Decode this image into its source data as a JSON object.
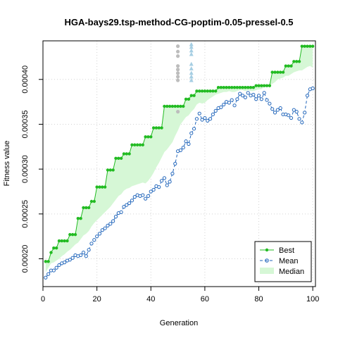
{
  "chart_data": {
    "type": "line",
    "title": "HGA-bays29.tsp-method-CG-poptim-0.05-pressel-0.5",
    "xlabel": "Generation",
    "ylabel": "Fitness value",
    "xlim": [
      0,
      101
    ],
    "ylim": [
      0.000169,
      0.000443
    ],
    "xticks": [
      0,
      20,
      40,
      60,
      80,
      100
    ],
    "yticks": [
      "0.00020",
      "0.00025",
      "0.00030",
      "0.00035",
      "0.00040"
    ],
    "ytick_values": [
      0.0002,
      0.00025,
      0.0003,
      0.00035,
      0.0004
    ],
    "grid": true,
    "legend_position": "bottom-right",
    "legend": [
      "Best",
      "Mean",
      "Median"
    ],
    "colors": {
      "best": "#22bb22",
      "mean": "#2266bb",
      "median_fill": "#d6f7d6",
      "jitter_grey": "#bdbdbd",
      "jitter_blue": "#a6cee3"
    },
    "series": [
      {
        "name": "Best",
        "x_from": 1,
        "values": [
          0.000197,
          0.000197,
          0.000207,
          0.000212,
          0.000212,
          0.00022,
          0.00022,
          0.00022,
          0.00022,
          0.000227,
          0.000227,
          0.000227,
          0.000245,
          0.000245,
          0.000257,
          0.000257,
          0.000257,
          0.000264,
          0.000264,
          0.00028,
          0.00028,
          0.00028,
          0.00028,
          0.000299,
          0.000299,
          0.000299,
          0.000312,
          0.000312,
          0.000312,
          0.000317,
          0.000317,
          0.000317,
          0.000327,
          0.000327,
          0.000327,
          0.000327,
          0.000327,
          0.000336,
          0.000336,
          0.000336,
          0.000346,
          0.000346,
          0.000346,
          0.000346,
          0.00037,
          0.00037,
          0.00037,
          0.00037,
          0.00037,
          0.00037,
          0.00037,
          0.00037,
          0.000378,
          0.000378,
          0.000382,
          0.000382,
          0.000387,
          0.000387,
          0.000387,
          0.000387,
          0.000387,
          0.000387,
          0.000387,
          0.000387,
          0.000391,
          0.000391,
          0.000391,
          0.000391,
          0.000391,
          0.000391,
          0.000391,
          0.000391,
          0.000391,
          0.000391,
          0.000391,
          0.000391,
          0.000391,
          0.000391,
          0.000393,
          0.000393,
          0.000393,
          0.000393,
          0.000393,
          0.000393,
          0.000408,
          0.000408,
          0.000408,
          0.000408,
          0.000408,
          0.000415,
          0.000415,
          0.000415,
          0.00042,
          0.00042,
          0.00042,
          0.000437,
          0.000437,
          0.000437,
          0.000437,
          0.000437
        ]
      },
      {
        "name": "Mean",
        "x_from": 1,
        "values": [
          0.000179,
          0.000183,
          0.000187,
          0.000187,
          0.00019,
          0.000193,
          0.000195,
          0.000196,
          0.000198,
          0.000199,
          0.000201,
          0.000204,
          0.000203,
          0.000204,
          0.000207,
          0.000203,
          0.00021,
          0.000217,
          0.000221,
          0.000225,
          0.000228,
          0.000232,
          0.000234,
          0.000237,
          0.000239,
          0.000242,
          0.000247,
          0.000251,
          0.000252,
          0.000258,
          0.00026,
          0.000262,
          0.000265,
          0.000269,
          0.000271,
          0.00027,
          0.000271,
          0.000267,
          0.00027,
          0.000275,
          0.000277,
          0.000281,
          0.00028,
          0.000287,
          0.00029,
          0.000282,
          0.000286,
          0.000295,
          0.000306,
          0.00032,
          0.000321,
          0.000324,
          0.000331,
          0.000328,
          0.00034,
          0.000345,
          0.000356,
          0.000362,
          0.000355,
          0.000357,
          0.000354,
          0.000356,
          0.000361,
          0.000365,
          0.000368,
          0.000369,
          0.000372,
          0.000375,
          0.000374,
          0.000377,
          0.000371,
          0.000378,
          0.000384,
          0.000382,
          0.00038,
          0.000385,
          0.000382,
          0.000383,
          0.000378,
          0.000382,
          0.000378,
          0.000385,
          0.000377,
          0.000373,
          0.000367,
          0.000363,
          0.000366,
          0.000368,
          0.000361,
          0.000361,
          0.00036,
          0.000357,
          0.000366,
          0.000364,
          0.000356,
          0.000352,
          0.000363,
          0.000382,
          0.000389,
          0.00039
        ]
      },
      {
        "name": "Median",
        "x_from": 1,
        "values": [
          0.000185,
          0.00019,
          0.000195,
          0.000196,
          0.000198,
          0.0002,
          0.000203,
          0.000205,
          0.000208,
          0.00021,
          0.000213,
          0.000216,
          0.000218,
          0.000222,
          0.000226,
          0.000228,
          0.000231,
          0.000236,
          0.00024,
          0.000243,
          0.000246,
          0.000249,
          0.000252,
          0.000255,
          0.000258,
          0.000262,
          0.000266,
          0.00027,
          0.000272,
          0.000276,
          0.000278,
          0.000279,
          0.000281,
          0.000282,
          0.000283,
          0.000284,
          0.000285,
          0.000284,
          0.000287,
          0.000291,
          0.000296,
          0.000302,
          0.000307,
          0.000313,
          0.000319,
          0.000322,
          0.000326,
          0.00033,
          0.000337,
          0.000343,
          0.00035,
          0.000354,
          0.000358,
          0.00036,
          0.000364,
          0.000367,
          0.000372,
          0.000374,
          0.000373,
          0.000374,
          0.000377,
          0.000379,
          0.000381,
          0.000383,
          0.000384,
          0.000385,
          0.000386,
          0.000386,
          0.000387,
          0.000386,
          0.000386,
          0.000387,
          0.000388,
          0.000388,
          0.000387,
          0.000388,
          0.000387,
          0.000387,
          0.000388,
          0.000389,
          0.000389,
          0.000392,
          0.000392,
          0.000393,
          0.000395,
          0.000397,
          0.0004,
          0.000401,
          0.000402,
          0.000404,
          0.000404,
          0.000406,
          0.000408,
          0.000409,
          0.00041,
          0.00041,
          0.000412,
          0.000414,
          0.000415,
          0.000413
        ]
      }
    ],
    "jitter_points": [
      {
        "x": 50,
        "y": 0.000437,
        "color": "grey"
      },
      {
        "x": 50,
        "y": 0.000431,
        "color": "grey"
      },
      {
        "x": 50,
        "y": 0.000426,
        "color": "grey"
      },
      {
        "x": 50,
        "y": 0.000415,
        "color": "grey"
      },
      {
        "x": 50,
        "y": 0.000411,
        "color": "grey"
      },
      {
        "x": 50,
        "y": 0.000407,
        "color": "grey"
      },
      {
        "x": 50,
        "y": 0.000403,
        "color": "grey"
      },
      {
        "x": 50,
        "y": 0.000399,
        "color": "grey"
      },
      {
        "x": 50,
        "y": 0.000364,
        "color": "grey"
      },
      {
        "x": 55,
        "y": 0.000439,
        "color": "blue"
      },
      {
        "x": 55,
        "y": 0.000436,
        "color": "blue"
      },
      {
        "x": 55,
        "y": 0.000432,
        "color": "blue"
      },
      {
        "x": 55,
        "y": 0.000428,
        "color": "blue"
      },
      {
        "x": 55,
        "y": 0.000417,
        "color": "blue"
      },
      {
        "x": 55,
        "y": 0.000412,
        "color": "blue"
      },
      {
        "x": 55,
        "y": 0.000407,
        "color": "blue"
      },
      {
        "x": 55,
        "y": 0.000403,
        "color": "blue"
      },
      {
        "x": 55,
        "y": 0.000399,
        "color": "blue"
      }
    ]
  }
}
